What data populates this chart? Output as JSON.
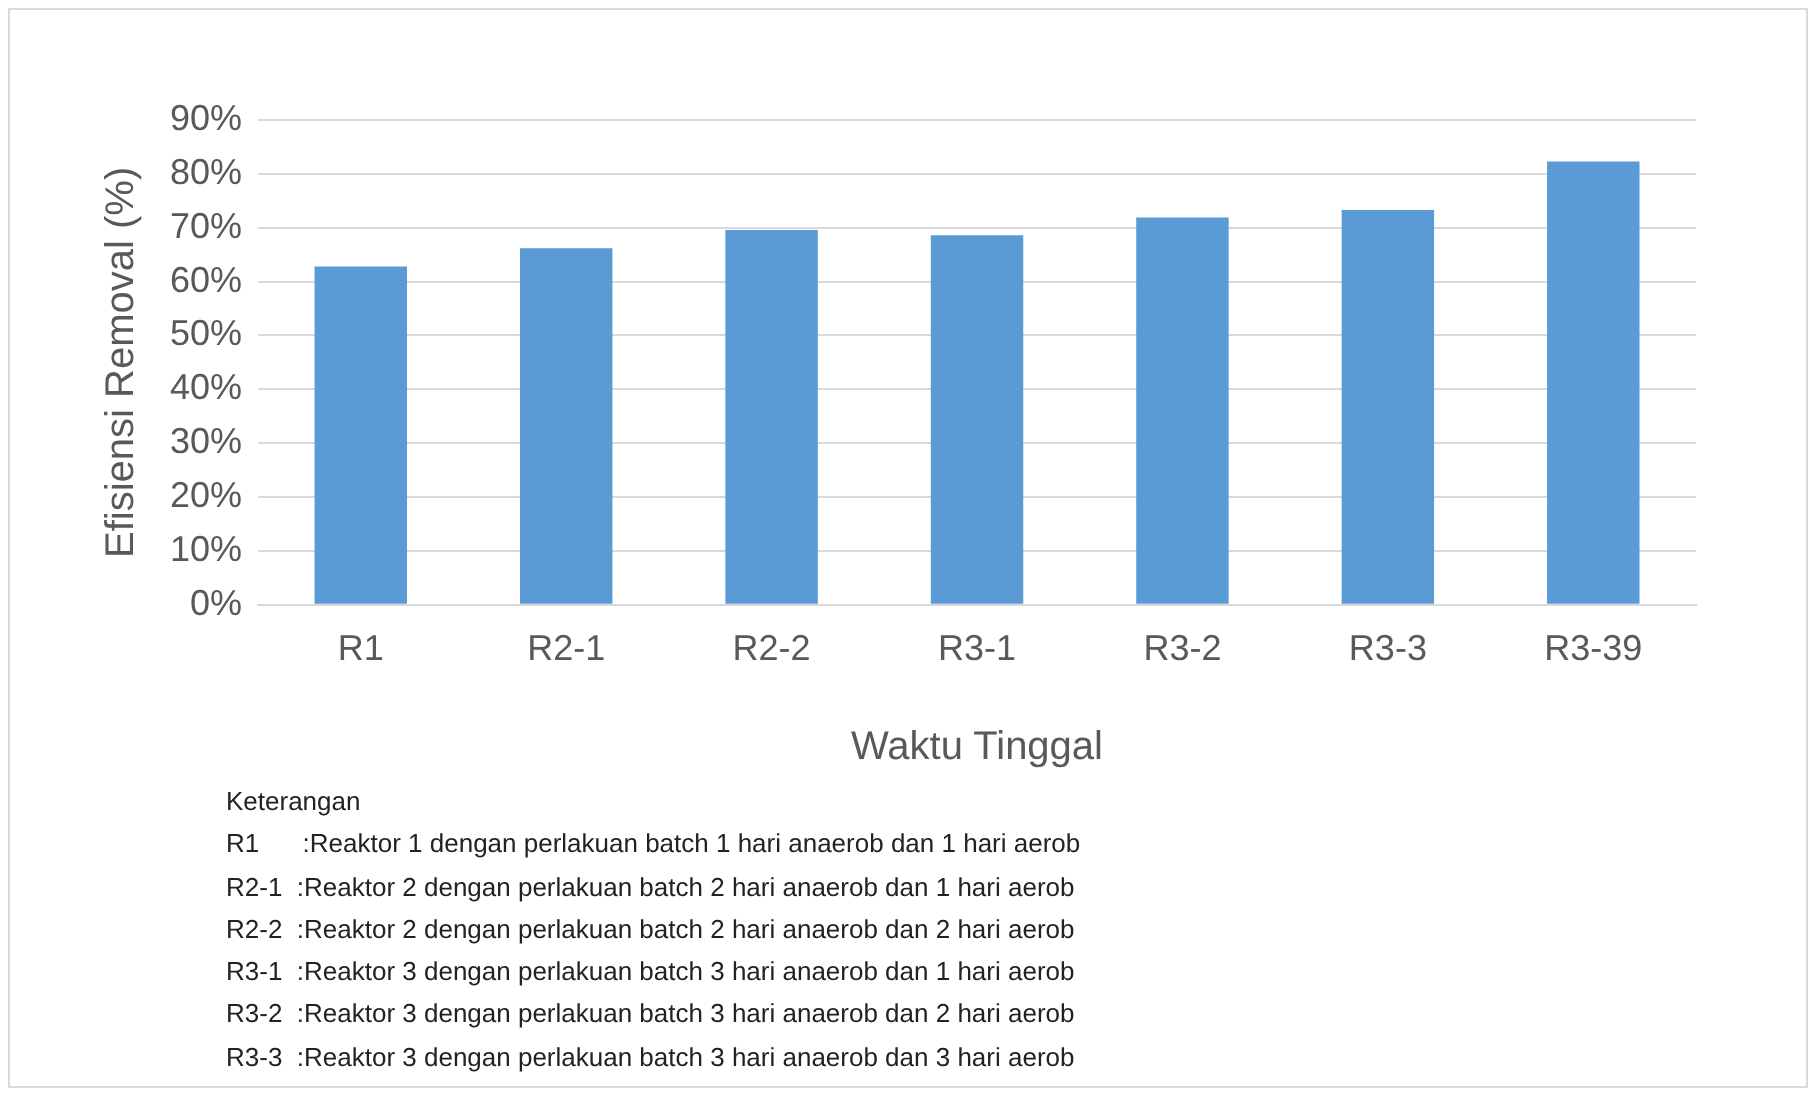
{
  "chart_data": {
    "type": "bar",
    "xlabel": "Waktu Tinggal",
    "ylabel": "Efisiensi Removal (%)",
    "categories": [
      "R1",
      "R2-1",
      "R2-2",
      "R3-1",
      "R3-2",
      "R3-3",
      "R3-39"
    ],
    "values": [
      62.8,
      66.2,
      69.6,
      68.6,
      71.9,
      73.3,
      82.3
    ],
    "color": "#5b9bd5",
    "ylim": [
      0,
      90
    ],
    "yticks": [
      {
        "value": 0,
        "label": "0%"
      },
      {
        "value": 10,
        "label": "10%"
      },
      {
        "value": 20,
        "label": "20%"
      },
      {
        "value": 30,
        "label": "30%"
      },
      {
        "value": 40,
        "label": "40%"
      },
      {
        "value": 50,
        "label": "50%"
      },
      {
        "value": 60,
        "label": "60%"
      },
      {
        "value": 70,
        "label": "70%"
      },
      {
        "value": 80,
        "label": "80%"
      },
      {
        "value": 90,
        "label": "90%"
      }
    ],
    "grid": "y",
    "legend": false,
    "annotations": [
      "Keterangan",
      "R1      :Reaktor 1 dengan perlakuan batch 1 hari anaerob dan 1 hari aerob",
      "R2-1  :Reaktor 2 dengan perlakuan batch 2 hari anaerob dan 1 hari aerob",
      "R2-2  :Reaktor 2 dengan perlakuan batch 2 hari anaerob dan 2 hari aerob",
      "R3-1  :Reaktor 3 dengan perlakuan batch 3 hari anaerob dan 1 hari aerob",
      "R3-2  :Reaktor 3 dengan perlakuan batch 3 hari anaerob dan 2 hari aerob",
      "R3-3  :Reaktor 3 dengan perlakuan batch 3 hari anaerob dan 3 hari aerob"
    ]
  }
}
